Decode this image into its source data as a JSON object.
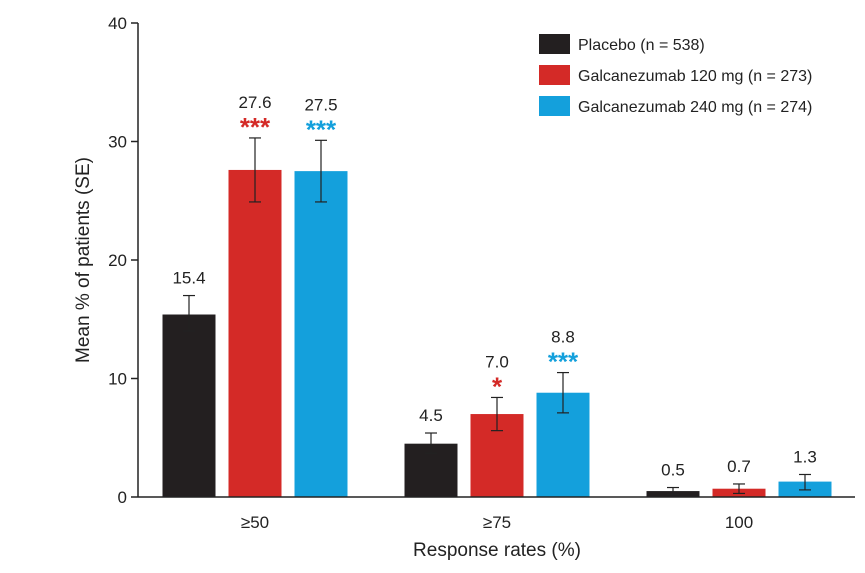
{
  "chart_data": {
    "type": "bar",
    "title": "",
    "xlabel": "Response rates (%)",
    "ylabel": "Mean % of patients (SE)",
    "ylim": [
      0,
      40
    ],
    "yticks": [
      0,
      10,
      20,
      30,
      40
    ],
    "ytick_labels": [
      "0",
      "10",
      "20",
      "30",
      "40"
    ],
    "categories": [
      "≥50",
      "≥75",
      "100"
    ],
    "legend_position": "top-right",
    "series": [
      {
        "name": "Placebo (n = 538)",
        "color": "#231f20",
        "values": [
          15.4,
          4.5,
          0.5
        ],
        "labels": [
          "15.4",
          "4.5",
          "0.5"
        ],
        "error_low": [
          14.0,
          3.7,
          0.2
        ],
        "error_high": [
          17.0,
          5.4,
          0.8
        ],
        "significance": [
          "",
          "",
          ""
        ],
        "sig_color": "#231f20"
      },
      {
        "name": "Galcanezumab 120 mg (n = 273)",
        "color": "#d42a27",
        "values": [
          27.6,
          7.0,
          0.7
        ],
        "labels": [
          "27.6",
          "7.0",
          "0.7"
        ],
        "error_low": [
          24.9,
          5.6,
          0.3
        ],
        "error_high": [
          30.3,
          8.4,
          1.1
        ],
        "significance": [
          "***",
          "*",
          ""
        ],
        "sig_color": "#d42a27"
      },
      {
        "name": "Galcanezumab 240 mg (n = 274)",
        "color": "#14a0dc",
        "values": [
          27.5,
          8.8,
          1.3
        ],
        "labels": [
          "27.5",
          "8.8",
          "1.3"
        ],
        "error_low": [
          24.9,
          7.1,
          0.6
        ],
        "error_high": [
          30.1,
          10.5,
          1.9
        ],
        "significance": [
          "***",
          "***",
          ""
        ],
        "sig_color": "#14a0dc"
      }
    ]
  }
}
